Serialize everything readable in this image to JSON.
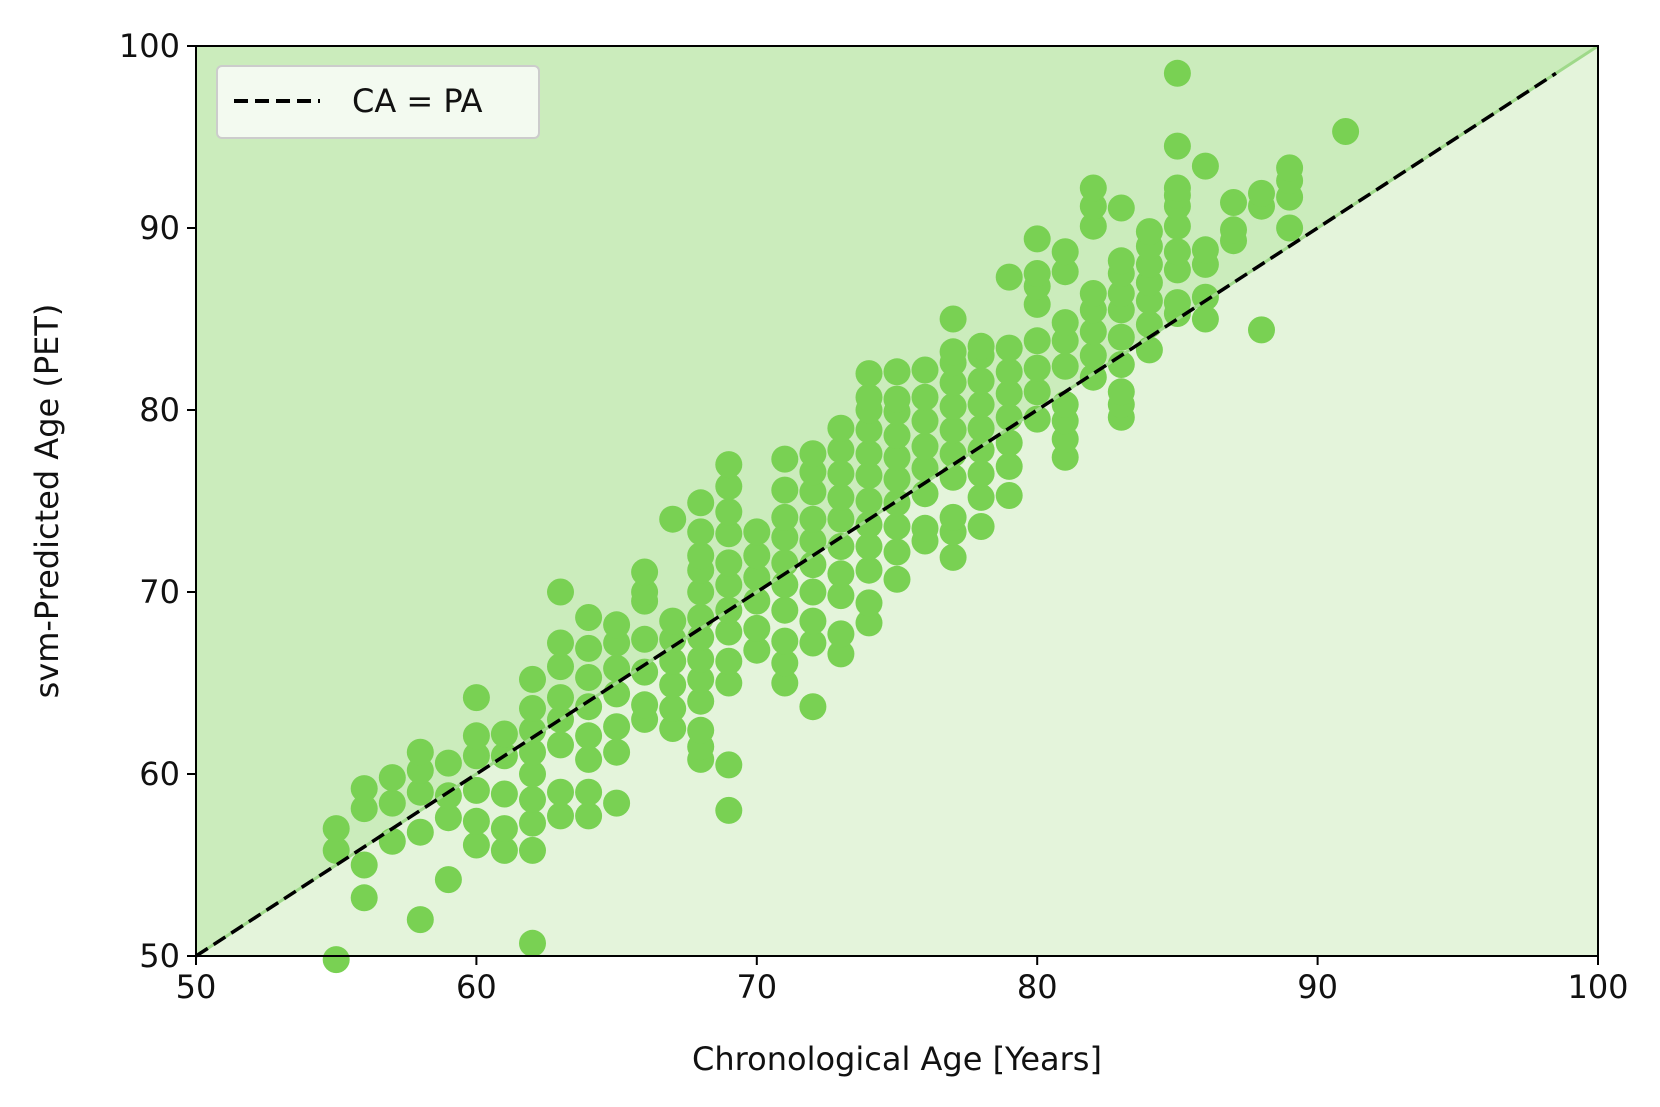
{
  "chart_data": {
    "type": "scatter",
    "xlabel": "Chronological Age [Years]",
    "ylabel": "svm-Predicted Age (PET)",
    "xlim": [
      50,
      100
    ],
    "ylim": [
      50,
      100
    ],
    "xticks": [
      "50",
      "60",
      "70",
      "80",
      "90",
      "100"
    ],
    "yticks": [
      "50",
      "60",
      "70",
      "80",
      "90",
      "100"
    ],
    "grid": false,
    "legend": {
      "position": "top-left",
      "label": "CA = PA",
      "style": "dashed black line"
    },
    "reference_line": {
      "label": "CA = PA",
      "from": [
        50,
        50
      ],
      "to": [
        100,
        100
      ]
    },
    "regions": {
      "above_line_color": "#cbecbc",
      "below_line_color": "#e4f4db"
    },
    "colors": {
      "points": "#79d153",
      "line": "#000000"
    },
    "series": [
      {
        "values": [
          [
            55,
            49.8
          ],
          [
            55,
            55.8
          ],
          [
            55,
            57.0
          ],
          [
            56,
            53.2
          ],
          [
            56,
            55.0
          ],
          [
            56,
            58.1
          ],
          [
            56,
            59.2
          ],
          [
            57,
            56.3
          ],
          [
            57,
            58.4
          ],
          [
            57,
            59.8
          ],
          [
            58,
            52.0
          ],
          [
            58,
            56.8
          ],
          [
            58,
            59.0
          ],
          [
            58,
            60.2
          ],
          [
            58,
            61.2
          ],
          [
            59,
            54.2
          ],
          [
            59,
            57.6
          ],
          [
            59,
            58.8
          ],
          [
            59,
            60.6
          ],
          [
            60,
            56.1
          ],
          [
            60,
            57.4
          ],
          [
            60,
            59.1
          ],
          [
            60,
            61.0
          ],
          [
            60,
            62.1
          ],
          [
            60,
            64.2
          ],
          [
            61,
            55.8
          ],
          [
            61,
            57.0
          ],
          [
            61,
            58.9
          ],
          [
            61,
            61.0
          ],
          [
            61,
            62.2
          ],
          [
            62,
            50.7
          ],
          [
            62,
            55.8
          ],
          [
            62,
            57.3
          ],
          [
            62,
            58.6
          ],
          [
            62,
            60.0
          ],
          [
            62,
            61.2
          ],
          [
            62,
            62.4
          ],
          [
            62,
            63.6
          ],
          [
            62,
            65.2
          ],
          [
            63,
            57.7
          ],
          [
            63,
            59.0
          ],
          [
            63,
            61.6
          ],
          [
            63,
            63.0
          ],
          [
            63,
            64.2
          ],
          [
            63,
            65.9
          ],
          [
            63,
            67.2
          ],
          [
            63,
            70.0
          ],
          [
            64,
            57.7
          ],
          [
            64,
            59.0
          ],
          [
            64,
            60.8
          ],
          [
            64,
            62.1
          ],
          [
            64,
            63.7
          ],
          [
            64,
            65.3
          ],
          [
            64,
            66.9
          ],
          [
            64,
            68.6
          ],
          [
            65,
            58.4
          ],
          [
            65,
            61.2
          ],
          [
            65,
            62.6
          ],
          [
            65,
            64.4
          ],
          [
            65,
            65.8
          ],
          [
            65,
            67.2
          ],
          [
            65,
            68.2
          ],
          [
            66,
            63.0
          ],
          [
            66,
            63.8
          ],
          [
            66,
            65.6
          ],
          [
            66,
            67.4
          ],
          [
            66,
            69.5
          ],
          [
            66,
            70.0
          ],
          [
            66,
            71.1
          ],
          [
            67,
            62.5
          ],
          [
            67,
            63.6
          ],
          [
            67,
            64.9
          ],
          [
            67,
            66.2
          ],
          [
            67,
            67.4
          ],
          [
            67,
            68.4
          ],
          [
            67,
            74.0
          ],
          [
            68,
            60.8
          ],
          [
            68,
            61.5
          ],
          [
            68,
            62.4
          ],
          [
            68,
            64.0
          ],
          [
            68,
            65.2
          ],
          [
            68,
            66.3
          ],
          [
            68,
            67.5
          ],
          [
            68,
            68.6
          ],
          [
            68,
            70.0
          ],
          [
            68,
            71.2
          ],
          [
            68,
            72.0
          ],
          [
            68,
            73.3
          ],
          [
            68,
            74.9
          ],
          [
            69,
            58.0
          ],
          [
            69,
            60.5
          ],
          [
            69,
            65.0
          ],
          [
            69,
            66.2
          ],
          [
            69,
            67.8
          ],
          [
            69,
            69.0
          ],
          [
            69,
            70.4
          ],
          [
            69,
            71.6
          ],
          [
            69,
            73.2
          ],
          [
            69,
            74.4
          ],
          [
            69,
            75.8
          ],
          [
            69,
            77.0
          ],
          [
            70,
            66.8
          ],
          [
            70,
            68.0
          ],
          [
            70,
            69.5
          ],
          [
            70,
            70.8
          ],
          [
            70,
            72.0
          ],
          [
            70,
            73.3
          ],
          [
            71,
            65.0
          ],
          [
            71,
            66.1
          ],
          [
            71,
            67.3
          ],
          [
            71,
            69.0
          ],
          [
            71,
            70.4
          ],
          [
            71,
            71.6
          ],
          [
            71,
            73.0
          ],
          [
            71,
            74.1
          ],
          [
            71,
            75.6
          ],
          [
            71,
            77.3
          ],
          [
            72,
            63.7
          ],
          [
            72,
            67.2
          ],
          [
            72,
            68.4
          ],
          [
            72,
            70.0
          ],
          [
            72,
            71.5
          ],
          [
            72,
            72.8
          ],
          [
            72,
            74.0
          ],
          [
            72,
            75.5
          ],
          [
            72,
            76.6
          ],
          [
            72,
            77.6
          ],
          [
            73,
            66.6
          ],
          [
            73,
            67.7
          ],
          [
            73,
            69.8
          ],
          [
            73,
            71.0
          ],
          [
            73,
            72.5
          ],
          [
            73,
            74.0
          ],
          [
            73,
            75.2
          ],
          [
            73,
            76.5
          ],
          [
            73,
            77.8
          ],
          [
            73,
            79.0
          ],
          [
            74,
            68.3
          ],
          [
            74,
            69.4
          ],
          [
            74,
            71.2
          ],
          [
            74,
            72.5
          ],
          [
            74,
            73.7
          ],
          [
            74,
            75.0
          ],
          [
            74,
            76.4
          ],
          [
            74,
            77.6
          ],
          [
            74,
            78.9
          ],
          [
            74,
            80.0
          ],
          [
            74,
            80.7
          ],
          [
            74,
            82.0
          ],
          [
            75,
            70.7
          ],
          [
            75,
            72.2
          ],
          [
            75,
            73.6
          ],
          [
            75,
            74.9
          ],
          [
            75,
            76.2
          ],
          [
            75,
            77.4
          ],
          [
            75,
            78.6
          ],
          [
            75,
            79.9
          ],
          [
            75,
            80.6
          ],
          [
            75,
            82.1
          ],
          [
            76,
            72.8
          ],
          [
            76,
            73.5
          ],
          [
            76,
            75.4
          ],
          [
            76,
            76.8
          ],
          [
            76,
            78.0
          ],
          [
            76,
            79.4
          ],
          [
            76,
            80.7
          ],
          [
            76,
            82.2
          ],
          [
            77,
            71.9
          ],
          [
            77,
            73.3
          ],
          [
            77,
            74.1
          ],
          [
            77,
            76.3
          ],
          [
            77,
            77.6
          ],
          [
            77,
            78.9
          ],
          [
            77,
            80.2
          ],
          [
            77,
            81.5
          ],
          [
            77,
            82.6
          ],
          [
            77,
            83.2
          ],
          [
            77,
            85.0
          ],
          [
            78,
            73.6
          ],
          [
            78,
            75.2
          ],
          [
            78,
            76.5
          ],
          [
            78,
            77.8
          ],
          [
            78,
            79.0
          ],
          [
            78,
            80.3
          ],
          [
            78,
            81.6
          ],
          [
            78,
            83.0
          ],
          [
            78,
            83.5
          ],
          [
            79,
            75.3
          ],
          [
            79,
            76.9
          ],
          [
            79,
            78.2
          ],
          [
            79,
            79.6
          ],
          [
            79,
            80.9
          ],
          [
            79,
            82.1
          ],
          [
            79,
            83.4
          ],
          [
            79,
            87.3
          ],
          [
            80,
            79.5
          ],
          [
            80,
            81.0
          ],
          [
            80,
            82.3
          ],
          [
            80,
            83.8
          ],
          [
            80,
            85.8
          ],
          [
            80,
            86.8
          ],
          [
            80,
            87.5
          ],
          [
            80,
            89.4
          ],
          [
            81,
            77.4
          ],
          [
            81,
            78.4
          ],
          [
            81,
            79.4
          ],
          [
            81,
            80.3
          ],
          [
            81,
            82.4
          ],
          [
            81,
            83.8
          ],
          [
            81,
            84.8
          ],
          [
            81,
            87.6
          ],
          [
            81,
            88.7
          ],
          [
            82,
            81.8
          ],
          [
            82,
            83.0
          ],
          [
            82,
            84.3
          ],
          [
            82,
            85.5
          ],
          [
            82,
            86.4
          ],
          [
            82,
            90.1
          ],
          [
            82,
            91.2
          ],
          [
            82,
            92.2
          ],
          [
            83,
            79.6
          ],
          [
            83,
            80.3
          ],
          [
            83,
            81.0
          ],
          [
            83,
            82.5
          ],
          [
            83,
            84.0
          ],
          [
            83,
            85.5
          ],
          [
            83,
            86.4
          ],
          [
            83,
            87.5
          ],
          [
            83,
            88.2
          ],
          [
            83,
            91.1
          ],
          [
            84,
            83.3
          ],
          [
            84,
            84.7
          ],
          [
            84,
            86.0
          ],
          [
            84,
            87.0
          ],
          [
            84,
            88.0
          ],
          [
            84,
            89.0
          ],
          [
            84,
            89.8
          ],
          [
            85,
            85.3
          ],
          [
            85,
            85.9
          ],
          [
            85,
            87.7
          ],
          [
            85,
            88.7
          ],
          [
            85,
            90.1
          ],
          [
            85,
            91.2
          ],
          [
            85,
            91.8
          ],
          [
            85,
            92.2
          ],
          [
            85,
            94.5
          ],
          [
            85,
            98.5
          ],
          [
            86,
            85.0
          ],
          [
            86,
            86.2
          ],
          [
            86,
            88.0
          ],
          [
            86,
            88.8
          ],
          [
            86,
            93.4
          ],
          [
            87,
            89.3
          ],
          [
            87,
            89.9
          ],
          [
            87,
            91.4
          ],
          [
            88,
            84.4
          ],
          [
            88,
            91.2
          ],
          [
            88,
            91.9
          ],
          [
            89,
            90.0
          ],
          [
            89,
            91.7
          ],
          [
            89,
            92.6
          ],
          [
            89,
            93.3
          ],
          [
            91,
            95.3
          ]
        ]
      }
    ]
  }
}
